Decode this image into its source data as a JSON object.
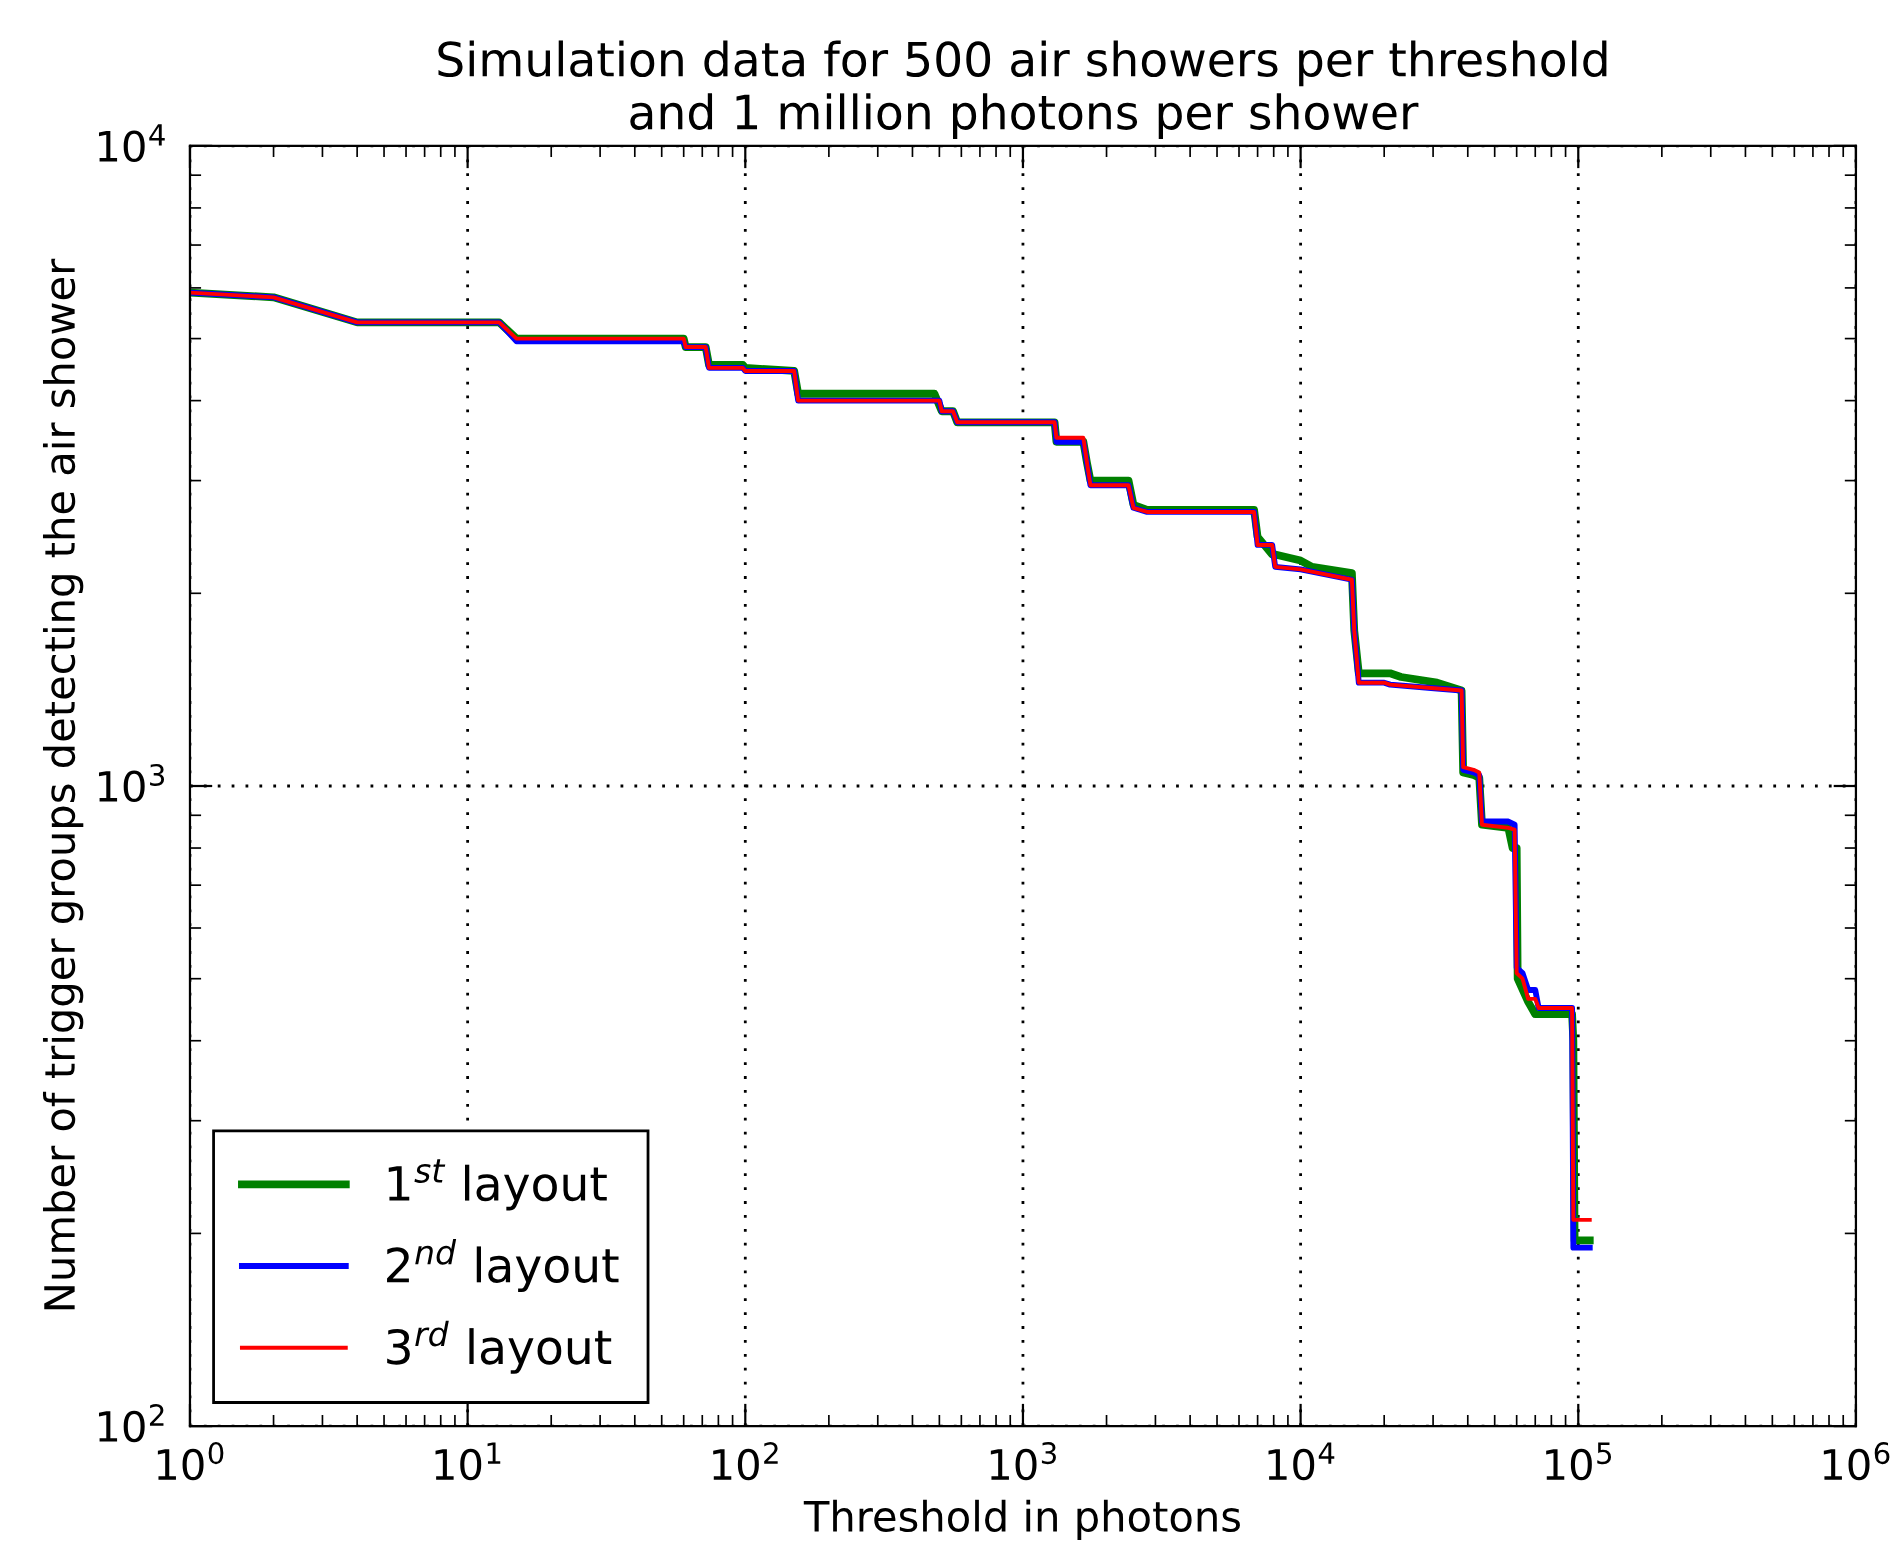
{
  "chart_data": {
    "type": "line",
    "title": "Simulation data for 500 air showers per threshold\nand 1 million photons per shower",
    "xlabel": "Threshold in photons",
    "ylabel": "Number of trigger groups detecting the air shower",
    "log": "xy",
    "xlim": [
      1,
      1000000
    ],
    "ylim": [
      100,
      10000
    ],
    "xticks": [
      {
        "value": 1,
        "label": "10$^{0}$"
      },
      {
        "value": 10,
        "label": "10$^{1}$"
      },
      {
        "value": 100,
        "label": "10$^{2}$"
      },
      {
        "value": 1000,
        "label": "10$^{3}$"
      },
      {
        "value": 10000,
        "label": "10$^{4}$"
      },
      {
        "value": 100000,
        "label": "10$^{5}$"
      },
      {
        "value": 1000000,
        "label": "10$^{6}$"
      }
    ],
    "yticks": [
      {
        "value": 100,
        "label": "10$^{2}$"
      },
      {
        "value": 1000,
        "label": "10$^{3}$"
      },
      {
        "value": 10000,
        "label": "10$^{4}$"
      }
    ],
    "grid": true,
    "legend": "bottom left",
    "line_style": "solid",
    "marker": "none",
    "series": [
      {
        "name": "1$^{st}$ layout",
        "color": "#008000",
        "x": [
          1,
          2,
          4,
          13,
          15,
          60,
          61,
          72,
          74,
          98,
          100,
          150,
          155,
          480,
          510,
          560,
          580,
          1300,
          1320,
          1650,
          1700,
          1750,
          2400,
          2500,
          2800,
          6800,
          7000,
          7900,
          8100,
          10000,
          11000,
          15300,
          15600,
          16200,
          21000,
          23000,
          31000,
          38000,
          38500,
          42000,
          44000,
          45000,
          56000,
          58000,
          60000,
          60500,
          66000,
          70000,
          95000,
          96000,
          97000,
          110000
        ],
        "values": [
          5900,
          5800,
          5300,
          5300,
          5000,
          5000,
          4850,
          4850,
          4550,
          4550,
          4500,
          4450,
          4100,
          4100,
          3850,
          3850,
          3700,
          3700,
          3450,
          3450,
          3200,
          3000,
          3000,
          2750,
          2700,
          2700,
          2450,
          2300,
          2300,
          2250,
          2200,
          2150,
          1750,
          1500,
          1500,
          1480,
          1450,
          1410,
          1050,
          1040,
          1030,
          870,
          860,
          800,
          800,
          500,
          460,
          440,
          440,
          400,
          195,
          195
        ]
      },
      {
        "name": "2$^{nd}$ layout",
        "color": "#0000ff",
        "x": [
          1,
          2,
          4,
          13,
          15,
          60,
          61,
          72,
          74,
          98,
          100,
          150,
          155,
          500,
          510,
          560,
          580,
          1300,
          1320,
          1650,
          1700,
          1750,
          2400,
          2500,
          2800,
          6800,
          7000,
          7900,
          8100,
          10000,
          15300,
          15600,
          16200,
          20000,
          21000,
          31000,
          38000,
          38500,
          42000,
          44000,
          45000,
          56000,
          59000,
          60000,
          63000,
          66000,
          70000,
          72000,
          95000,
          96000,
          110000
        ],
        "values": [
          5900,
          5800,
          5300,
          5300,
          4950,
          4950,
          4850,
          4850,
          4500,
          4500,
          4450,
          4450,
          4000,
          4000,
          3850,
          3850,
          3700,
          3700,
          3450,
          3450,
          3200,
          2950,
          2950,
          2720,
          2680,
          2680,
          2380,
          2380,
          2200,
          2180,
          2100,
          1750,
          1450,
          1450,
          1440,
          1420,
          1410,
          1060,
          1050,
          1040,
          880,
          880,
          870,
          520,
          510,
          480,
          480,
          450,
          450,
          190,
          190
        ]
      },
      {
        "name": "3$^{rd}$ layout",
        "color": "#ff0000",
        "x": [
          1,
          2,
          4,
          13,
          15,
          60,
          61,
          72,
          74,
          98,
          100,
          150,
          155,
          500,
          510,
          560,
          580,
          1300,
          1320,
          1650,
          1700,
          1750,
          2400,
          2500,
          2800,
          6800,
          7000,
          7900,
          8100,
          10000,
          15300,
          15600,
          16200,
          20000,
          21000,
          31000,
          38000,
          38500,
          42000,
          44000,
          45000,
          56000,
          59000,
          60000,
          63000,
          66000,
          70000,
          72000,
          95000,
          96000,
          110000
        ],
        "values": [
          5900,
          5800,
          5300,
          5300,
          5000,
          5000,
          4850,
          4850,
          4500,
          4500,
          4450,
          4450,
          4000,
          4000,
          3850,
          3850,
          3700,
          3700,
          3500,
          3500,
          3200,
          2950,
          2950,
          2720,
          2680,
          2680,
          2380,
          2380,
          2200,
          2180,
          2100,
          1750,
          1450,
          1450,
          1440,
          1420,
          1410,
          1070,
          1060,
          1050,
          870,
          860,
          855,
          510,
          500,
          465,
          465,
          450,
          450,
          210,
          210
        ]
      }
    ]
  }
}
